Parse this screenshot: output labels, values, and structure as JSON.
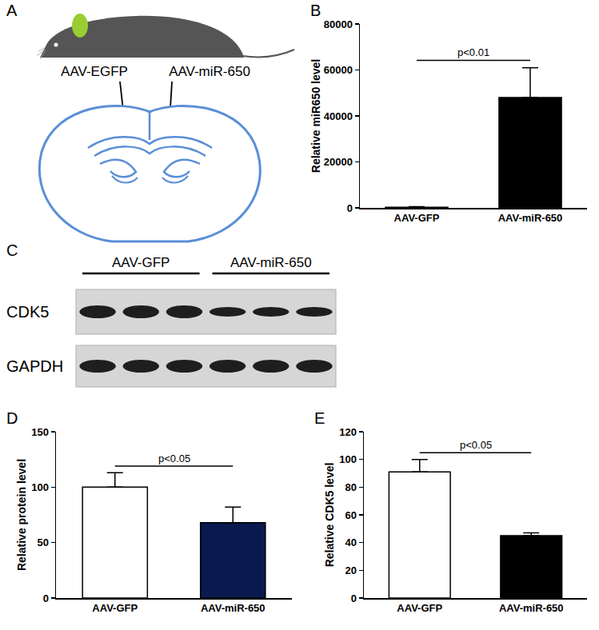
{
  "panels": [
    {
      "panel": "A",
      "type": "diagram",
      "labels": [
        "AAV-EGFP",
        "AAV-miR-650"
      ]
    },
    {
      "panel": "C",
      "type": "blot",
      "groups": [
        "AAV-GFP",
        "AAV-miR-650"
      ],
      "lanes_per_group": 3,
      "rows": [
        "CDK5",
        "GAPDH"
      ]
    }
  ],
  "chart_data": [
    {
      "panel": "B",
      "type": "bar",
      "categories": [
        "AAV-GFP",
        "AAV-miR-650"
      ],
      "values": [
        300,
        48000
      ],
      "error": [
        200,
        13000
      ],
      "colors": [
        "#ffffff",
        "#000000"
      ],
      "y_label": "Relative miR650 level",
      "ylim": [
        0,
        80000
      ],
      "yticks": [
        0,
        20000,
        40000,
        60000,
        80000
      ],
      "annotation": "p<0.01"
    },
    {
      "panel": "D",
      "type": "bar",
      "categories": [
        "AAV-GFP",
        "AAV-miR-650"
      ],
      "values": [
        100,
        68
      ],
      "error": [
        13,
        14
      ],
      "colors": [
        "#ffffff",
        "#0b1a4e"
      ],
      "y_label": "Relative protein level",
      "ylim": [
        0,
        150
      ],
      "yticks": [
        0,
        50,
        100,
        150
      ],
      "annotation": "p<0.05"
    },
    {
      "panel": "E",
      "type": "bar",
      "categories": [
        "AAV-GFP",
        "AAV-miR-650"
      ],
      "values": [
        91,
        45
      ],
      "error": [
        9,
        2
      ],
      "colors": [
        "#ffffff",
        "#000000"
      ],
      "y_label": "Relative CDK5 level",
      "ylim": [
        0,
        120
      ],
      "yticks": [
        0,
        20,
        40,
        60,
        80,
        100,
        120
      ],
      "annotation": "p<0.05"
    }
  ]
}
